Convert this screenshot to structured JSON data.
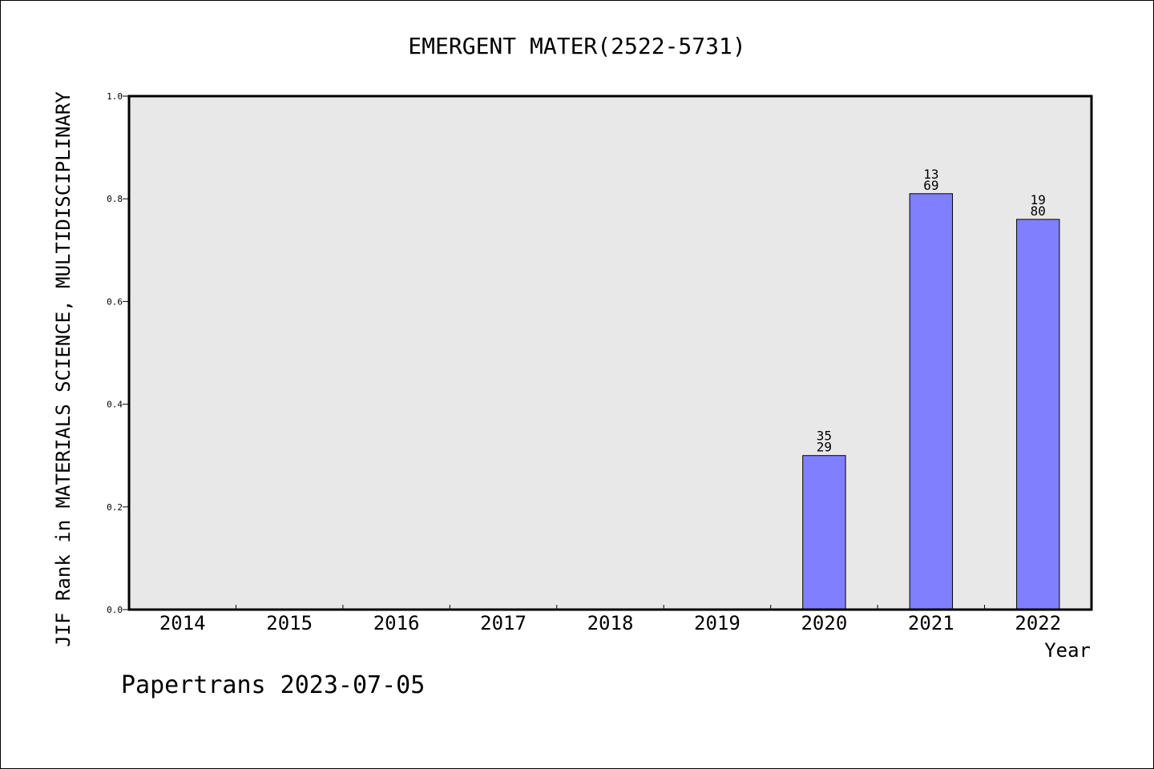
{
  "chart_data": {
    "type": "bar",
    "title": "EMERGENT MATER(2522-5731)",
    "xlabel": "Year",
    "ylabel": "JIF Rank in MATERIALS SCIENCE, MULTIDISCIPLINARY",
    "footer": "Papertrans 2023-07-05",
    "categories": [
      "2014",
      "2015",
      "2016",
      "2017",
      "2018",
      "2019",
      "2020",
      "2021",
      "2022"
    ],
    "values": [
      null,
      null,
      null,
      null,
      null,
      null,
      0.3,
      0.81,
      0.76
    ],
    "bar_labels": [
      null,
      null,
      null,
      null,
      null,
      null,
      {
        "top": "35",
        "bottom": "29"
      },
      {
        "top": "13",
        "bottom": "69"
      },
      {
        "top": "19",
        "bottom": "80"
      }
    ],
    "ylim": [
      0,
      1.0
    ],
    "yticks": [
      "0.0",
      "0.2",
      "0.4",
      "0.6",
      "0.8",
      "1.0"
    ],
    "grid": false,
    "colors": {
      "bar_fill": "#8080ff",
      "plot_background": "#e8e8e8",
      "axis": "#000000"
    }
  }
}
